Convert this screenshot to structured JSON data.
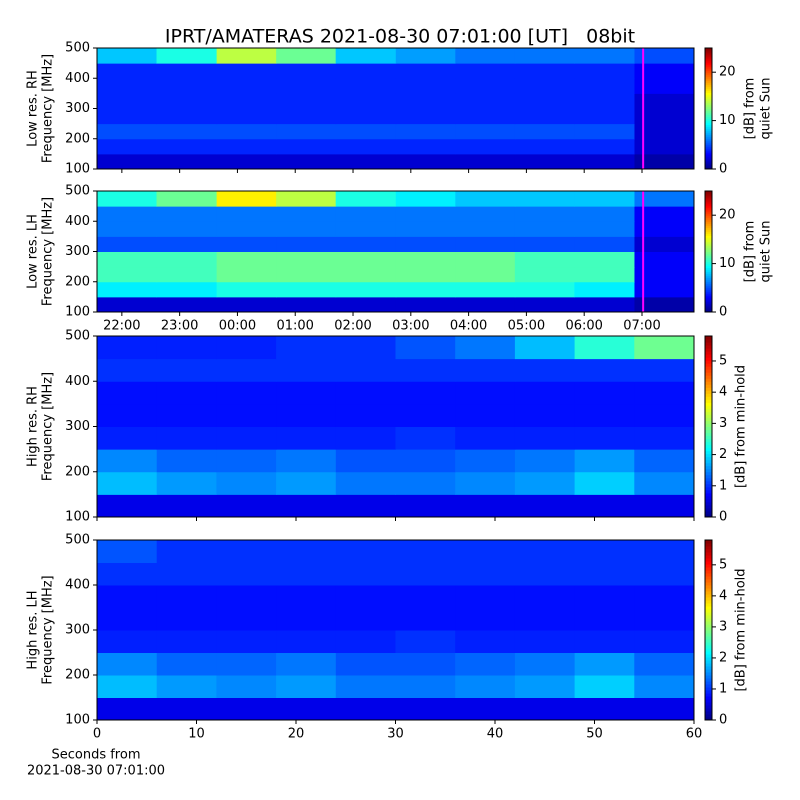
{
  "chart_data": [
    {
      "type": "heatmap",
      "title": "IPRT/AMATERAS 2021-08-30 07:01:00 [UT]   08bit",
      "ylabel": [
        "Low res. RH",
        "Frequency [MHz]"
      ],
      "ylim": [
        100,
        500
      ],
      "yticks": [
        100,
        200,
        300,
        400,
        500
      ],
      "x_bins": [
        21.57,
        22.6,
        23.64,
        24.67,
        25.7,
        26.74,
        27.77,
        28.8,
        29.83,
        30.87,
        31.9
      ],
      "y_bins": [
        100,
        150,
        200,
        250,
        300,
        350,
        400,
        450,
        500
      ],
      "values": [
        [
          2,
          2,
          2,
          2,
          2,
          2,
          2,
          2,
          2,
          1
        ],
        [
          4,
          4,
          4,
          4,
          4,
          4,
          4,
          4,
          4,
          2
        ],
        [
          5,
          5,
          5,
          5,
          5,
          5,
          5,
          5,
          5,
          2
        ],
        [
          4,
          4,
          4,
          4,
          4,
          4,
          4,
          4,
          4,
          2
        ],
        [
          4,
          4,
          4,
          4,
          4,
          4,
          4,
          4,
          4,
          2
        ],
        [
          4,
          4,
          4,
          4,
          4,
          4,
          4,
          4,
          4,
          3
        ],
        [
          4,
          4,
          4,
          4,
          4,
          4,
          4,
          4,
          4,
          3
        ],
        [
          8,
          10,
          14,
          12,
          8,
          7,
          6,
          6,
          6,
          5
        ]
      ],
      "colormap": "jet",
      "zlim": [
        0,
        25
      ],
      "colorbar_ticks": [
        0,
        10,
        20
      ],
      "colorbar_label": [
        "[dB] from",
        "quiet Sun"
      ],
      "marker": 31.02,
      "marker_color": "#ff00ff"
    },
    {
      "type": "heatmap",
      "ylabel": [
        "Low res. LH",
        "Frequency [MHz]"
      ],
      "ylim": [
        100,
        500
      ],
      "yticks": [
        100,
        200,
        300,
        400,
        500
      ],
      "xlim": [
        21.57,
        31.9
      ],
      "xticks": [
        {
          "value": 22,
          "label": "22:00"
        },
        {
          "value": 23,
          "label": "23:00"
        },
        {
          "value": 24,
          "label": "00:00"
        },
        {
          "value": 25,
          "label": "01:00"
        },
        {
          "value": 26,
          "label": "02:00"
        },
        {
          "value": 27,
          "label": "03:00"
        },
        {
          "value": 28,
          "label": "04:00"
        },
        {
          "value": 29,
          "label": "05:00"
        },
        {
          "value": 30,
          "label": "06:00"
        },
        {
          "value": 31,
          "label": "07:00"
        }
      ],
      "x_bins": [
        21.57,
        22.6,
        23.64,
        24.67,
        25.7,
        26.74,
        27.77,
        28.8,
        29.83,
        30.87,
        31.9
      ],
      "y_bins": [
        100,
        150,
        200,
        250,
        300,
        350,
        400,
        450,
        500
      ],
      "values": [
        [
          2,
          2,
          2,
          2,
          2,
          2,
          2,
          2,
          2,
          1
        ],
        [
          9,
          9,
          10,
          10,
          10,
          10,
          10,
          10,
          9,
          3
        ],
        [
          11,
          11,
          12,
          12,
          12,
          12,
          12,
          11,
          11,
          3
        ],
        [
          11,
          11,
          12,
          12,
          12,
          12,
          12,
          11,
          11,
          3
        ],
        [
          5,
          5,
          5,
          5,
          5,
          5,
          5,
          5,
          5,
          2
        ],
        [
          6,
          6,
          6,
          6,
          6,
          6,
          6,
          6,
          6,
          3
        ],
        [
          6,
          6,
          6,
          6,
          6,
          6,
          6,
          6,
          6,
          3
        ],
        [
          10,
          12,
          16,
          14,
          10,
          9,
          8,
          8,
          8,
          6
        ]
      ],
      "colormap": "jet",
      "zlim": [
        0,
        25
      ],
      "colorbar_ticks": [
        0,
        10,
        20
      ],
      "colorbar_label": [
        "[dB] from",
        "quiet Sun"
      ],
      "marker": 31.02,
      "marker_color": "#ff00ff"
    },
    {
      "type": "heatmap",
      "ylabel": [
        "High res. RH",
        "Frequency [MHz]"
      ],
      "ylim": [
        100,
        500
      ],
      "yticks": [
        100,
        200,
        300,
        400,
        500
      ],
      "x_bins": [
        0,
        6,
        12,
        18,
        24,
        30,
        36,
        42,
        48,
        54,
        60
      ],
      "y_bins": [
        100,
        150,
        200,
        250,
        300,
        350,
        400,
        450,
        500
      ],
      "values": [
        [
          0.6,
          0.6,
          0.6,
          0.6,
          0.6,
          0.6,
          0.6,
          0.6,
          0.6,
          0.6
        ],
        [
          1.8,
          1.6,
          1.5,
          1.6,
          1.4,
          1.4,
          1.5,
          1.6,
          1.9,
          1.5
        ],
        [
          1.5,
          1.3,
          1.3,
          1.4,
          1.2,
          1.2,
          1.3,
          1.4,
          1.6,
          1.3
        ],
        [
          0.9,
          0.9,
          0.9,
          0.9,
          0.9,
          1.0,
          0.9,
          0.9,
          0.9,
          0.9
        ],
        [
          0.8,
          0.8,
          0.8,
          0.8,
          0.8,
          0.8,
          0.8,
          0.8,
          0.8,
          0.8
        ],
        [
          0.8,
          0.8,
          0.8,
          0.8,
          0.8,
          0.8,
          0.8,
          0.8,
          0.8,
          0.8
        ],
        [
          1.0,
          1.0,
          1.0,
          1.0,
          1.0,
          1.0,
          1.0,
          1.0,
          1.0,
          1.0
        ],
        [
          0.9,
          0.9,
          0.9,
          1.0,
          1.0,
          1.2,
          1.4,
          1.8,
          2.4,
          2.8
        ]
      ],
      "colormap": "jet",
      "zlim": [
        0,
        5.8
      ],
      "colorbar_ticks": [
        0,
        1,
        2,
        3,
        4,
        5
      ],
      "colorbar_label": [
        "[dB] from min-hold"
      ]
    },
    {
      "type": "heatmap",
      "ylabel": [
        "High res. LH",
        "Frequency [MHz]"
      ],
      "ylim": [
        100,
        500
      ],
      "yticks": [
        100,
        200,
        300,
        400,
        500
      ],
      "xlim": [
        0,
        60
      ],
      "xticks": [
        0,
        10,
        20,
        30,
        40,
        50,
        60
      ],
      "xlabel": [
        "Seconds from",
        "2021-08-30 07:01:00"
      ],
      "x_bins": [
        0,
        6,
        12,
        18,
        24,
        30,
        36,
        42,
        48,
        54,
        60
      ],
      "y_bins": [
        100,
        150,
        200,
        250,
        300,
        350,
        400,
        450,
        500
      ],
      "values": [
        [
          0.6,
          0.6,
          0.6,
          0.6,
          0.6,
          0.6,
          0.6,
          0.6,
          0.6,
          0.6
        ],
        [
          1.8,
          1.6,
          1.5,
          1.6,
          1.4,
          1.4,
          1.5,
          1.6,
          1.9,
          1.5
        ],
        [
          1.5,
          1.3,
          1.3,
          1.4,
          1.2,
          1.2,
          1.3,
          1.4,
          1.6,
          1.3
        ],
        [
          0.9,
          0.9,
          0.9,
          0.9,
          0.9,
          1.0,
          0.9,
          0.9,
          0.9,
          0.9
        ],
        [
          0.8,
          0.8,
          0.8,
          0.8,
          0.8,
          0.8,
          0.8,
          0.8,
          0.8,
          0.8
        ],
        [
          0.8,
          0.8,
          0.8,
          0.8,
          0.8,
          0.8,
          0.8,
          0.8,
          0.8,
          0.8
        ],
        [
          1.0,
          1.0,
          1.0,
          1.0,
          1.0,
          1.0,
          1.0,
          1.0,
          1.0,
          1.0
        ],
        [
          1.2,
          1.0,
          1.0,
          1.0,
          1.0,
          1.0,
          1.0,
          1.0,
          1.0,
          1.0
        ]
      ],
      "colormap": "jet",
      "zlim": [
        0,
        5.8
      ],
      "colorbar_ticks": [
        0,
        1,
        2,
        3,
        4,
        5
      ],
      "colorbar_label": [
        "[dB] from min-hold"
      ]
    }
  ]
}
